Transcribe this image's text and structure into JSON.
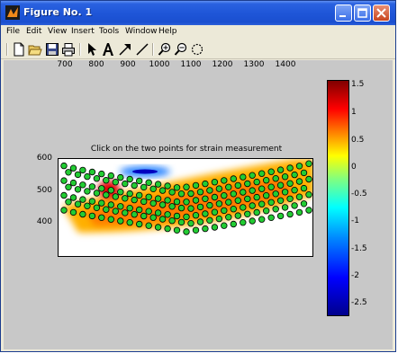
{
  "window": {
    "title": "Figure No. 1"
  },
  "menu": [
    "File",
    "Edit",
    "View",
    "Insert",
    "Tools",
    "Window",
    "Help"
  ],
  "toolbar": [
    "new-file-icon",
    "open-folder-icon",
    "save-icon",
    "print-icon",
    "arrow-select-icon",
    "text-icon",
    "arrow-icon",
    "line-icon",
    "zoom-in-icon",
    "zoom-out-icon",
    "rotate-icon"
  ],
  "plot": {
    "title": "Click on the two points for strain measurement",
    "y_ticks": [
      "600",
      "500",
      "400"
    ],
    "x_ticks": [
      "700",
      "800",
      "900",
      "1000",
      "1100",
      "1200",
      "1300",
      "1400"
    ]
  },
  "colorbar": {
    "ticks": [
      "1.5",
      "1",
      "0.5",
      "0",
      "-0.5",
      "-1",
      "-1.5",
      "-2",
      "-2.5"
    ]
  }
}
